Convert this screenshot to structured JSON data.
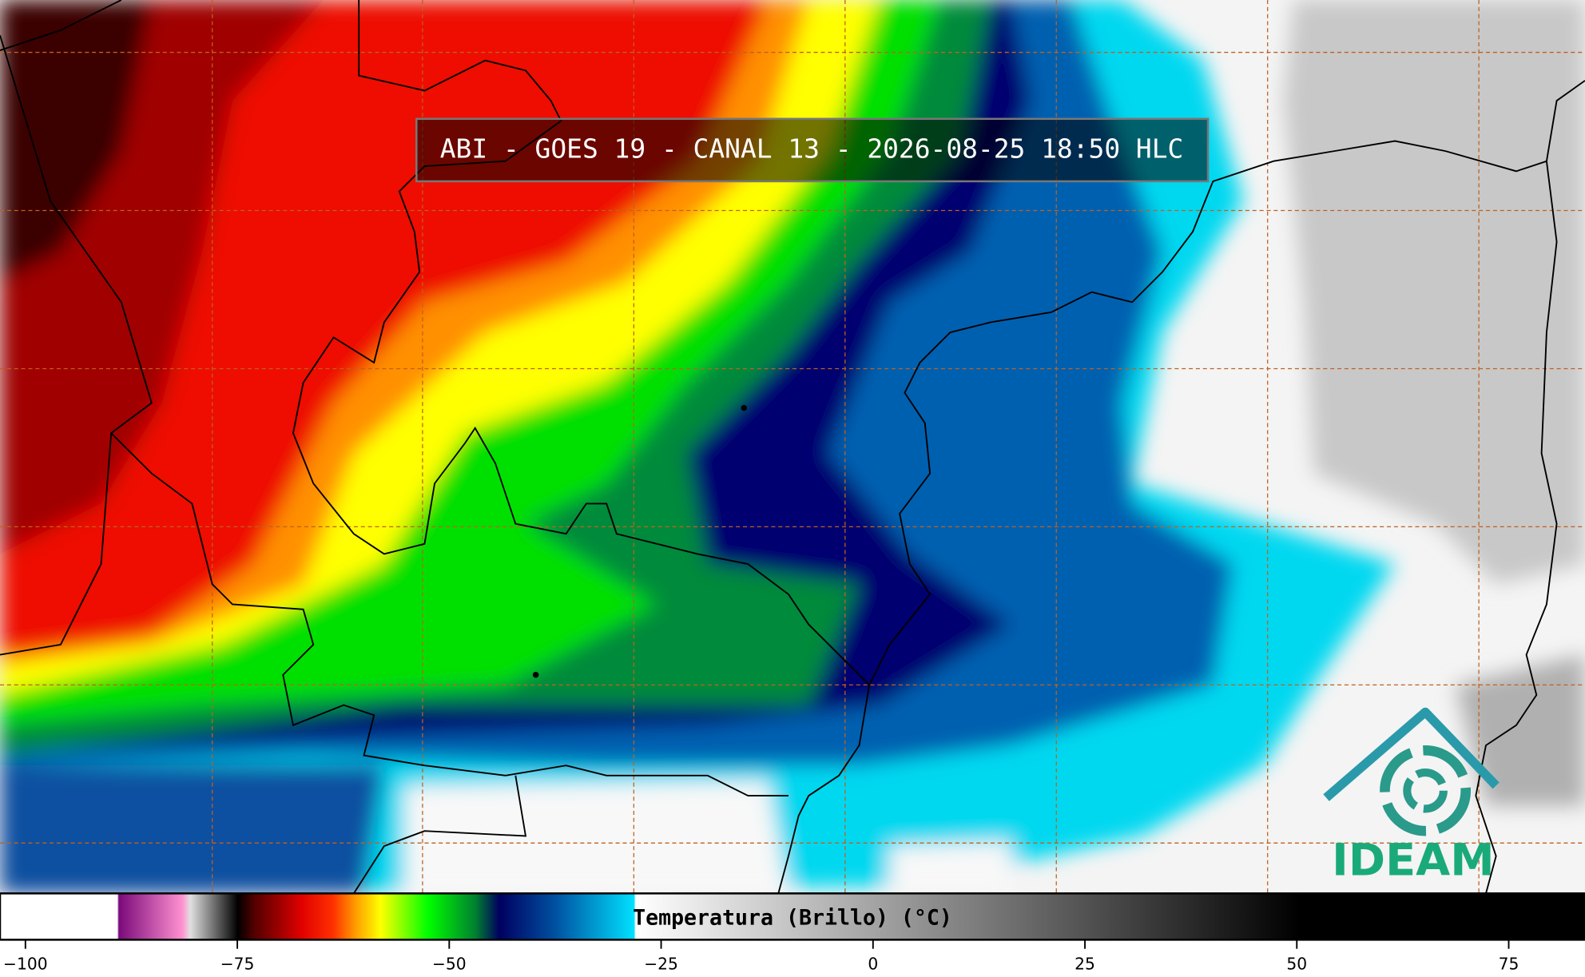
{
  "title": "ABI - GOES 19 - CANAL 13 - 2026-08-25 18:50 HLC",
  "colorbar": {
    "label": "Temperatura (Brillo) (°C)",
    "lim": [
      -103,
      84
    ],
    "ticks": [
      {
        "value": -100,
        "label": "−100"
      },
      {
        "value": -75,
        "label": "−75"
      },
      {
        "value": -50,
        "label": "−50"
      },
      {
        "value": -25,
        "label": "−25"
      },
      0,
      25,
      50,
      75
    ]
  },
  "logo": {
    "text": "IDEAM"
  }
}
